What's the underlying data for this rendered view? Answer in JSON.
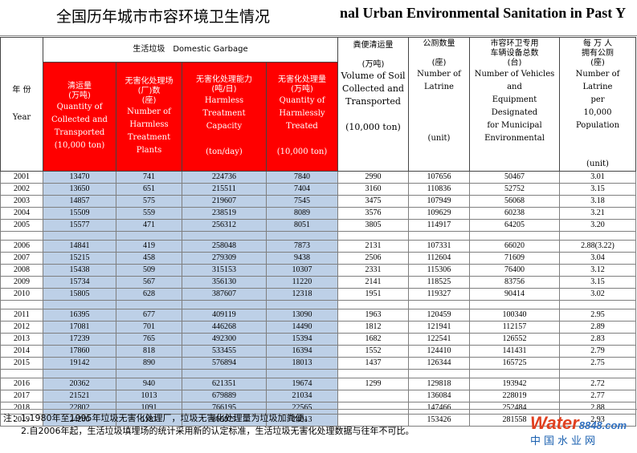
{
  "title": {
    "cn": "全国历年城市市容环境卫生情况",
    "en": "nal Urban Environmental Sanitation in Past Y"
  },
  "headers": {
    "year_cn": "年 份",
    "year_en": "Year",
    "domestic_garbage": "生活垃圾　Domestic Garbage",
    "collected": {
      "cn": "清运量\n(万吨)",
      "en": "Quantity of\nCollected and\nTransported\n(10,000 ton)"
    },
    "plants": {
      "cn": "无害化处理场\n(厂)数\n(座)",
      "en": "Number of\nHarmless\nTreatment\nPlants"
    },
    "capacity": {
      "cn": "无害化处理能力\n(吨/日)",
      "en": "Harmless Treatment\nCapacity\n\n(ton/day)"
    },
    "treated": {
      "cn": "无害化处理量\n(万吨)",
      "en": "Quantity of\nHarmlessly\nTreated\n\n(10,000 ton)"
    },
    "soil": {
      "cn": "粪便清运量\n\n(万吨)",
      "en": "Volume of Soil\nCollected and\nTransported\n\n(10,000 ton)"
    },
    "latrine": {
      "cn": "公厕数量\n\n(座)",
      "en": "Number of\nLatrine\n\n\n\n(unit)"
    },
    "vehicles": {
      "cn": "市容环卫专用\n车辆设备总数\n(台)",
      "en": "Number of  Vehicles\nand\nEquipment\nDesignated\nfor Municipal\nEnvironmental"
    },
    "per10k": {
      "cn": "每 万 人\n拥有公厕\n(座)",
      "en": "Number of Latrine\nper\n10,000 Population\n\n\n(unit)"
    }
  },
  "groups": [
    [
      [
        "2001",
        "13470",
        "741",
        "224736",
        "7840",
        "2990",
        "107656",
        "50467",
        "3.01"
      ],
      [
        "2002",
        "13650",
        "651",
        "215511",
        "7404",
        "3160",
        "110836",
        "52752",
        "3.15"
      ],
      [
        "2003",
        "14857",
        "575",
        "219607",
        "7545",
        "3475",
        "107949",
        "56068",
        "3.18"
      ],
      [
        "2004",
        "15509",
        "559",
        "238519",
        "8089",
        "3576",
        "109629",
        "60238",
        "3.21"
      ],
      [
        "2005",
        "15577",
        "471",
        "256312",
        "8051",
        "3805",
        "114917",
        "64205",
        "3.20"
      ]
    ],
    [
      [
        "2006",
        "14841",
        "419",
        "258048",
        "7873",
        "2131",
        "107331",
        "66020",
        "2.88(3.22)"
      ],
      [
        "2007",
        "15215",
        "458",
        "279309",
        "9438",
        "2506",
        "112604",
        "71609",
        "3.04"
      ],
      [
        "2008",
        "15438",
        "509",
        "315153",
        "10307",
        "2331",
        "115306",
        "76400",
        "3.12"
      ],
      [
        "2009",
        "15734",
        "567",
        "356130",
        "11220",
        "2141",
        "118525",
        "83756",
        "3.15"
      ],
      [
        "2010",
        "15805",
        "628",
        "387607",
        "12318",
        "1951",
        "119327",
        "90414",
        "3.02"
      ]
    ],
    [
      [
        "2011",
        "16395",
        "677",
        "409119",
        "13090",
        "1963",
        "120459",
        "100340",
        "2.95"
      ],
      [
        "2012",
        "17081",
        "701",
        "446268",
        "14490",
        "1812",
        "121941",
        "112157",
        "2.89"
      ],
      [
        "2013",
        "17239",
        "765",
        "492300",
        "15394",
        "1682",
        "122541",
        "126552",
        "2.83"
      ],
      [
        "2014",
        "17860",
        "818",
        "533455",
        "16394",
        "1552",
        "124410",
        "141431",
        "2.79"
      ],
      [
        "2015",
        "19142",
        "890",
        "576894",
        "18013",
        "1437",
        "126344",
        "165725",
        "2.75"
      ]
    ],
    [
      [
        "2016",
        "20362",
        "940",
        "621351",
        "19674",
        "1299",
        "129818",
        "193942",
        "2.72"
      ],
      [
        "2017",
        "21521",
        "1013",
        "679889",
        "21034",
        "",
        "136084",
        "228019",
        "2.77"
      ],
      [
        "2018",
        "22802",
        "1091",
        "766195",
        "22565",
        "",
        "147466",
        "252484",
        "2.88"
      ],
      [
        "2019",
        "24206",
        "1183",
        "869875",
        "24013",
        "",
        "153426",
        "281558",
        "2.93"
      ]
    ]
  ],
  "notes": [
    "注：1.1980年至1995年垃圾无害化处理厂，垃圾无害化处理量为垃圾加粪便。",
    "　　2.自2006年起，生活垃圾填埋场的统计采用新的认定标准，生活垃圾无害化处理数据与往年不可比。"
  ],
  "logo": {
    "word": "Water",
    "number": "8848",
    "suffix": ".com",
    "cn": "中国水业网"
  },
  "colors": {
    "header_red": "#ff0000",
    "data_blue": "#bdd0e7"
  }
}
